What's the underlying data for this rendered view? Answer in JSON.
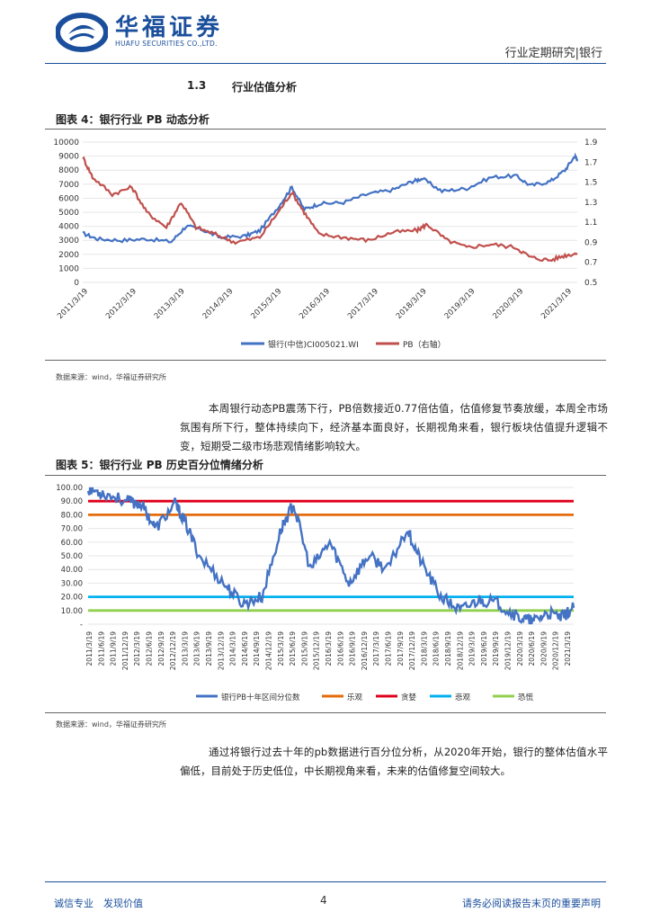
{
  "header": {
    "brand_cn": "华福证券",
    "brand_en": "HUAFU SECURITIES CO.,LTD.",
    "right_text": "行业定期研究|银行"
  },
  "section": {
    "number": "1.3",
    "title": "行业估值分析"
  },
  "figure4": {
    "title": "图表 4：银行行业 PB 动态分析",
    "source": "数据来源：wind，华福证券研究所",
    "chart_data": {
      "type": "line",
      "x_ticks": [
        "2011/3/19",
        "2012/3/19",
        "2013/3/19",
        "2014/3/19",
        "2015/3/19",
        "2016/3/19",
        "2017/3/19",
        "2018/3/19",
        "2019/3/19",
        "2020/3/19",
        "2021/3/19"
      ],
      "y_left": {
        "min": 0,
        "max": 10000,
        "ticks": [
          "0",
          "1000",
          "2000",
          "3000",
          "4000",
          "5000",
          "6000",
          "7000",
          "8000",
          "9000",
          "10000"
        ]
      },
      "y_right": {
        "min": 0.5,
        "max": 1.9,
        "ticks": [
          "0.5",
          "0.7",
          "0.9",
          "1.1",
          "1.3",
          "1.5",
          "1.7",
          "1.9"
        ]
      },
      "grid": true,
      "legend_position": "bottom",
      "series": [
        {
          "name": "银行(中信)CI005021.WI",
          "axis": "left",
          "color": "#4472c4",
          "x": [
            2011.2,
            2011.5,
            2012.0,
            2012.5,
            2013.0,
            2013.3,
            2013.6,
            2014.0,
            2014.5,
            2014.8,
            2015.2,
            2015.45,
            2015.7,
            2016.0,
            2016.5,
            2017.0,
            2017.5,
            2017.9,
            2018.1,
            2018.5,
            2019.0,
            2019.5,
            2020.0,
            2020.3,
            2020.7,
            2021.0,
            2021.2,
            2021.25
          ],
          "y": [
            3500,
            3100,
            3000,
            3100,
            2900,
            4000,
            3800,
            3200,
            3300,
            3700,
            5500,
            6800,
            5200,
            5600,
            5700,
            6300,
            6600,
            7200,
            7400,
            6500,
            6700,
            7500,
            7600,
            6900,
            7200,
            8000,
            9000,
            8800
          ]
        },
        {
          "name": "PB（右轴）",
          "axis": "right",
          "color": "#c0504d",
          "x": [
            2011.2,
            2011.4,
            2011.8,
            2012.2,
            2012.5,
            2012.9,
            2013.2,
            2013.5,
            2013.9,
            2014.3,
            2014.8,
            2015.2,
            2015.45,
            2015.7,
            2016.0,
            2016.5,
            2017.0,
            2017.5,
            2018.0,
            2018.2,
            2018.6,
            2019.0,
            2019.5,
            2020.0,
            2020.3,
            2020.7,
            2021.0,
            2021.25
          ],
          "y": [
            1.75,
            1.55,
            1.38,
            1.45,
            1.2,
            1.05,
            1.3,
            1.05,
            0.98,
            0.9,
            0.95,
            1.22,
            1.4,
            1.2,
            0.98,
            0.95,
            0.92,
            1.0,
            1.02,
            1.08,
            0.92,
            0.85,
            0.88,
            0.85,
            0.75,
            0.72,
            0.77,
            0.79
          ]
        }
      ]
    }
  },
  "paragraph1": "本周银行动态PB震荡下行，PB倍数接近0.77倍估值，估值修复节奏放缓，本周全市场氛围有所下行，整体持续向下，经济基本面良好，长期视角来看，银行板块估值提升逻辑不变，短期受二级市场悲观情绪影响较大。",
  "figure5": {
    "title": "图表 5：银行行业 PB 历史百分位情绪分析",
    "source": "数据来源：wind，华福证券研究所",
    "chart_data": {
      "type": "line",
      "x_ticks": [
        "2011/3/19",
        "2011/6/19",
        "2011/9/19",
        "2011/12/19",
        "2012/3/19",
        "2012/6/19",
        "2012/9/19",
        "2012/12/19",
        "2013/3/19",
        "2013/6/19",
        "2013/9/19",
        "2013/12/19",
        "2014/3/19",
        "2014/6/19",
        "2014/9/19",
        "2014/12/19",
        "2015/3/19",
        "2015/6/19",
        "2015/9/19",
        "2015/12/19",
        "2016/3/19",
        "2016/6/19",
        "2016/9/19",
        "2016/12/19",
        "2017/3/19",
        "2017/6/19",
        "2017/9/19",
        "2017/12/19",
        "2018/3/19",
        "2018/6/19",
        "2018/9/19",
        "2018/12/19",
        "2019/3/19",
        "2019/6/19",
        "2019/9/19",
        "2019/12/19",
        "2020/3/19",
        "2020/6/19",
        "2020/9/19",
        "2020/12/19",
        "2021/3/19"
      ],
      "y": {
        "min": 0,
        "max": 100,
        "ticks": [
          "-",
          "10.00",
          "20.00",
          "30.00",
          "40.00",
          "50.00",
          "60.00",
          "70.00",
          "80.00",
          "90.00",
          "100.00"
        ]
      },
      "grid": true,
      "legend_position": "bottom",
      "series": [
        {
          "name": "银行PB十年区间分位数",
          "color": "#4472c4",
          "x": [
            2011.2,
            2011.5,
            2012.0,
            2012.3,
            2012.6,
            2013.0,
            2013.2,
            2013.5,
            2014.0,
            2014.4,
            2014.8,
            2015.2,
            2015.45,
            2015.8,
            2016.2,
            2016.6,
            2017.0,
            2017.4,
            2017.8,
            2018.1,
            2018.5,
            2018.9,
            2019.3,
            2019.7,
            2020.1,
            2020.4,
            2020.7,
            2021.0,
            2021.25
          ],
          "y": [
            99,
            96,
            90,
            88,
            70,
            88,
            75,
            50,
            30,
            15,
            20,
            70,
            88,
            40,
            60,
            30,
            50,
            40,
            70,
            45,
            20,
            10,
            18,
            15,
            5,
            2,
            8,
            5,
            12
          ]
        },
        {
          "name": "乐观",
          "color": "#e46c0a",
          "constant": 80
        },
        {
          "name": "贪婪",
          "color": "#e0001b",
          "constant": 90
        },
        {
          "name": "悲观",
          "color": "#00b0f0",
          "constant": 20
        },
        {
          "name": "恐慌",
          "color": "#92d050",
          "constant": 10
        }
      ]
    }
  },
  "paragraph2": "通过将银行过去十年的pb数据进行百分位分析，从2020年开始，银行的整体估值水平偏低，目前处于历史低位，中长期视角来看，未来的估值修复空间较大。",
  "footer": {
    "left": "诚信专业　发现价值",
    "page": "4",
    "right": "请务必阅读报告末页的重要声明"
  }
}
